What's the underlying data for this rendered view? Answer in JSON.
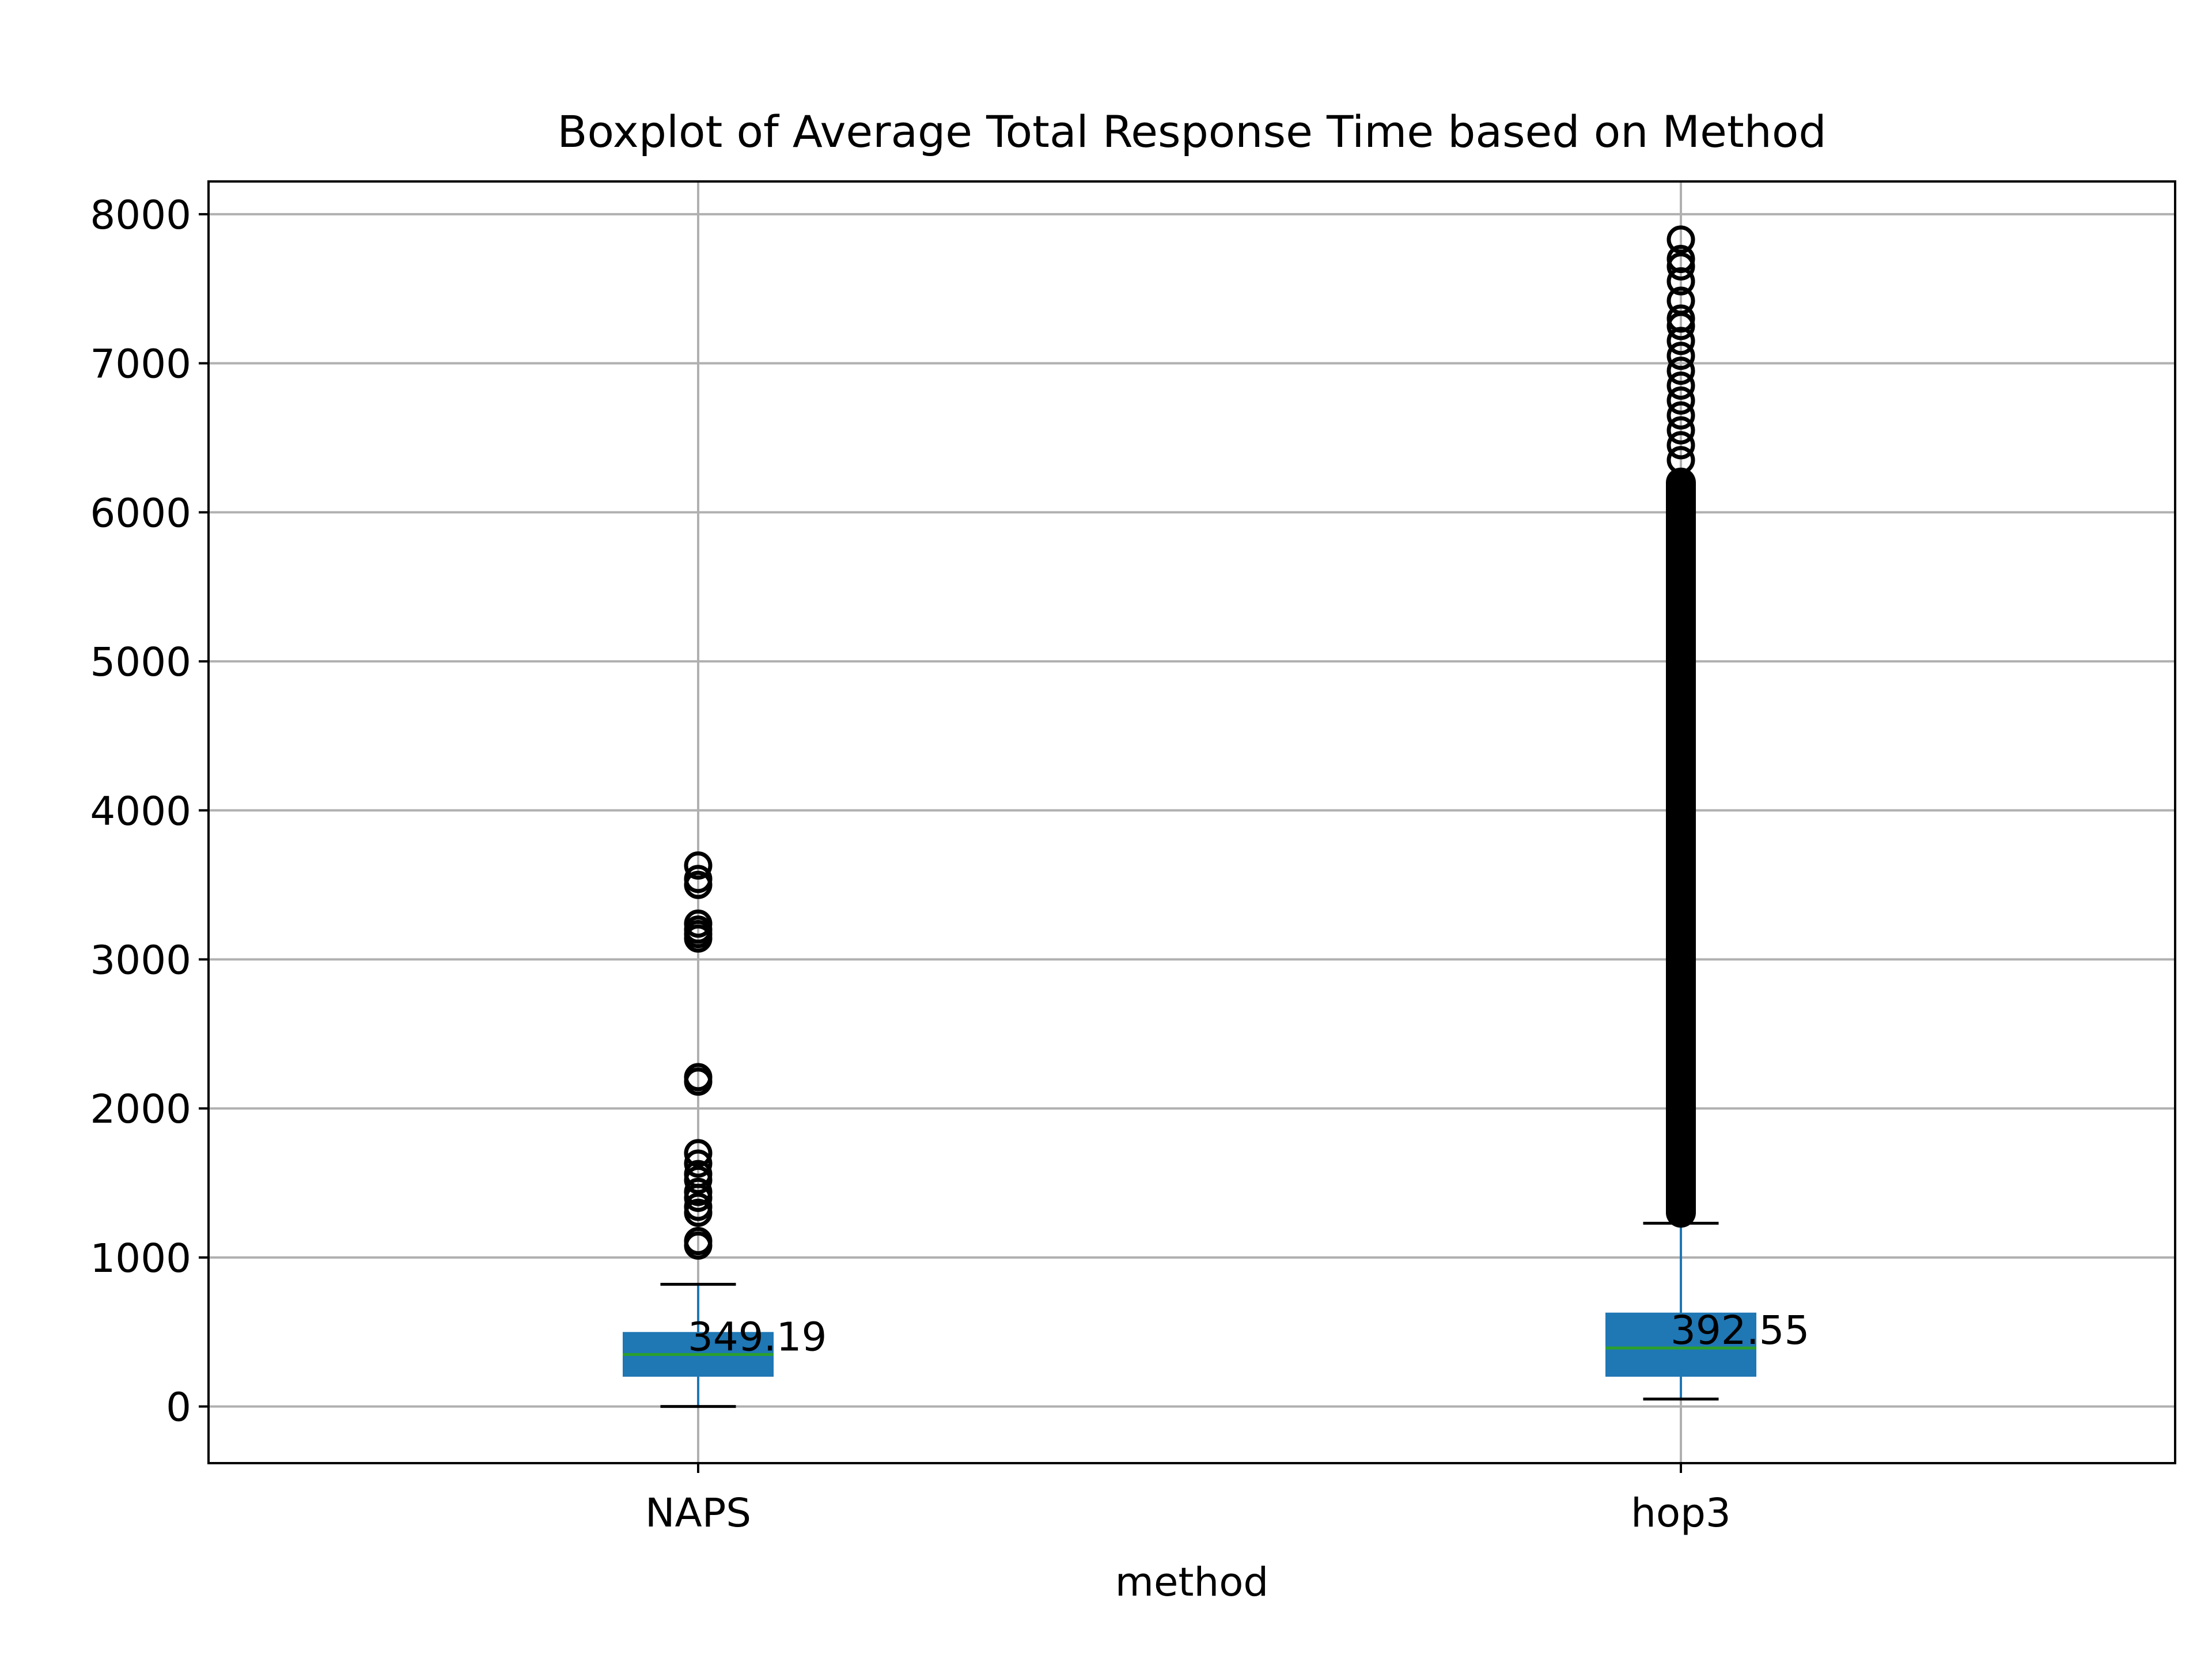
{
  "chart_data": {
    "type": "boxplot",
    "title": "Boxplot of Average Total Response Time based on Method",
    "xlabel": "method",
    "ylabel": "",
    "ylim": [
      -380,
      8220
    ],
    "yticks": [
      0,
      1000,
      2000,
      3000,
      4000,
      5000,
      6000,
      7000,
      8000
    ],
    "ytick_labels": [
      "0",
      "1000",
      "2000",
      "3000",
      "4000",
      "5000",
      "6000",
      "7000",
      "8000"
    ],
    "grid": true,
    "categories": [
      "NAPS",
      "hop3"
    ],
    "boxes": [
      {
        "name": "NAPS",
        "whisker_low": 0,
        "q1": 200,
        "median": 349.19,
        "q3": 500,
        "whisker_high": 820,
        "median_label": "349.19",
        "outliers": [
          1080,
          1110,
          1300,
          1340,
          1400,
          1440,
          1520,
          1560,
          1630,
          1700,
          2180,
          2210,
          3140,
          3170,
          3200,
          3240,
          3500,
          3540,
          3630
        ]
      },
      {
        "name": "hop3",
        "whisker_low": 50,
        "q1": 200,
        "median": 392.55,
        "q3": 630,
        "whisker_high": 1230,
        "median_label": "392.55",
        "outliers_dense_range": [
          1200,
          6300
        ],
        "outliers": [
          6350,
          6450,
          6550,
          6650,
          6750,
          6850,
          6950,
          7050,
          7150,
          7250,
          7300,
          7420,
          7550,
          7650,
          7700,
          7830
        ]
      }
    ],
    "colors": {
      "box_fill": "#1f77b4",
      "median": "#2ca02c",
      "whisker": "#1f77b4",
      "caps": "#000000",
      "outlier": "#000000",
      "grid": "#b0b0b0",
      "axes": "#000000"
    }
  }
}
